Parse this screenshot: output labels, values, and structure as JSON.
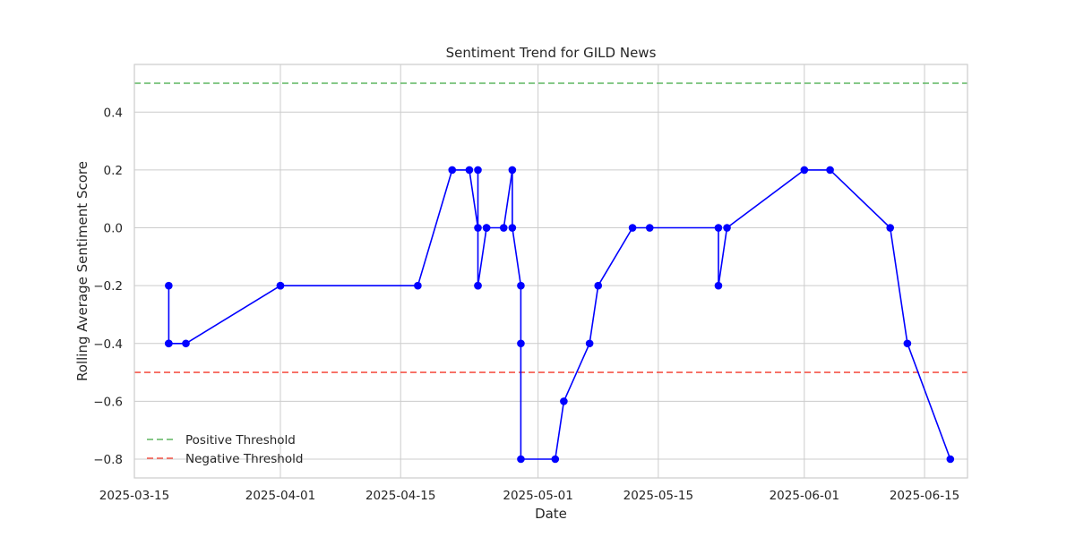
{
  "chart_data": {
    "type": "line",
    "title": "Sentiment Trend for GILD News",
    "xlabel": "Date",
    "ylabel": "Rolling Average Sentiment Score",
    "xlim": [
      "2025-03-15",
      "2025-06-20"
    ],
    "ylim": [
      -0.865,
      0.565
    ],
    "x_ticks": [
      "2025-03-15",
      "2025-04-01",
      "2025-04-15",
      "2025-05-01",
      "2025-05-15",
      "2025-06-01",
      "2025-06-15"
    ],
    "y_ticks": [
      0.4,
      0.2,
      0.0,
      -0.2,
      -0.4,
      -0.6,
      -0.8
    ],
    "y_tick_labels": [
      "0.4",
      "0.2",
      "0.0",
      "−0.2",
      "−0.4",
      "−0.6",
      "−0.8"
    ],
    "grid": true,
    "legend_position": "bottom-left",
    "series": [
      {
        "name": "",
        "color": "#0000ff",
        "marker": "circle",
        "x": [
          "2025-03-19",
          "2025-03-19",
          "2025-03-19",
          "2025-03-21",
          "2025-04-01",
          "2025-04-01",
          "2025-04-17",
          "2025-04-21",
          "2025-04-23",
          "2025-04-24",
          "2025-04-24",
          "2025-04-24",
          "2025-04-24",
          "2025-04-25",
          "2025-04-25",
          "2025-04-27",
          "2025-04-28",
          "2025-04-28",
          "2025-04-29",
          "2025-04-29",
          "2025-04-29",
          "2025-05-03",
          "2025-05-04",
          "2025-05-07",
          "2025-05-08",
          "2025-05-12",
          "2025-05-14",
          "2025-05-22",
          "2025-05-22",
          "2025-05-23",
          "2025-06-01",
          "2025-06-04",
          "2025-06-11",
          "2025-06-13",
          "2025-06-18"
        ],
        "y": [
          -0.2,
          -0.4,
          -0.4,
          -0.4,
          -0.2,
          -0.2,
          -0.2,
          0.2,
          0.2,
          0.0,
          0.2,
          -0.2,
          -0.2,
          0.0,
          0.0,
          0.0,
          0.2,
          0.0,
          -0.2,
          -0.4,
          -0.8,
          -0.8,
          -0.6,
          -0.4,
          -0.2,
          0.0,
          0.0,
          0.0,
          -0.2,
          0.0,
          0.2,
          0.2,
          0.0,
          -0.4,
          -0.8
        ]
      }
    ],
    "thresholds": [
      {
        "name": "Positive Threshold",
        "value": 0.5,
        "color": "#4caf50",
        "style": "dashed"
      },
      {
        "name": "Negative Threshold",
        "value": -0.5,
        "color": "#f44336",
        "style": "dashed"
      }
    ]
  }
}
